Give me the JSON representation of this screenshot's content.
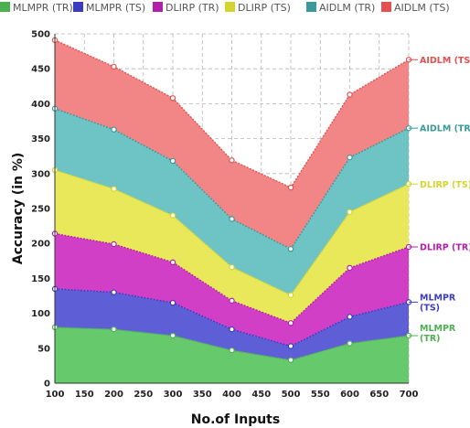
{
  "chart_data": {
    "type": "area",
    "stacked": true,
    "title": "",
    "xlabel": "No.of Inputs",
    "ylabel": "Accuracy (in %)",
    "x": [
      100,
      200,
      300,
      400,
      500,
      600,
      700
    ],
    "xlim": [
      100,
      700
    ],
    "ylim": [
      0,
      500
    ],
    "x_ticks": [
      "100",
      "150",
      "200",
      "250",
      "300",
      "350",
      "400",
      "450",
      "500",
      "550",
      "600",
      "650",
      "700"
    ],
    "y_ticks": [
      "0",
      "50",
      "100",
      "150",
      "200",
      "250",
      "300",
      "350",
      "400",
      "450",
      "500"
    ],
    "grid": true,
    "legend_position": "top",
    "series": [
      {
        "name": "MLMPR (TR)",
        "values": [
          80,
          77,
          68,
          47,
          33,
          57,
          68
        ],
        "color": "#66c96c",
        "line_color": "#4caf50",
        "end_label": [
          "MLMPR",
          "(TR)"
        ]
      },
      {
        "name": "MLMPR (TS)",
        "values": [
          55,
          53,
          47,
          30,
          20,
          38,
          48
        ],
        "color": "#5e5fd6",
        "line_color": "#3c3cc0",
        "end_label": [
          "MLMPR",
          "(TS)"
        ]
      },
      {
        "name": "DLIRP (TR)",
        "values": [
          79,
          69,
          58,
          41,
          33,
          70,
          79
        ],
        "color": "#d23fc7",
        "line_color": "#b020a8",
        "end_label": [
          "DLIRP (TR)"
        ]
      },
      {
        "name": "DLIRP (TS)",
        "values": [
          91,
          79,
          67,
          48,
          40,
          80,
          90
        ],
        "color": "#e8e85a",
        "line_color": "#d4d430",
        "end_label": [
          "DLIRP (TS)"
        ]
      },
      {
        "name": "AIDLM (TR)",
        "values": [
          88,
          85,
          78,
          69,
          66,
          78,
          80
        ],
        "color": "#6ec4c4",
        "line_color": "#3a9a9a",
        "end_label": [
          "AIDLM (TR)"
        ]
      },
      {
        "name": "AIDLM (TS)",
        "values": [
          98,
          90,
          90,
          84,
          88,
          90,
          98
        ],
        "color": "#f28585",
        "line_color": "#e25050",
        "end_label": [
          "AIDLM (TS)"
        ]
      }
    ]
  }
}
